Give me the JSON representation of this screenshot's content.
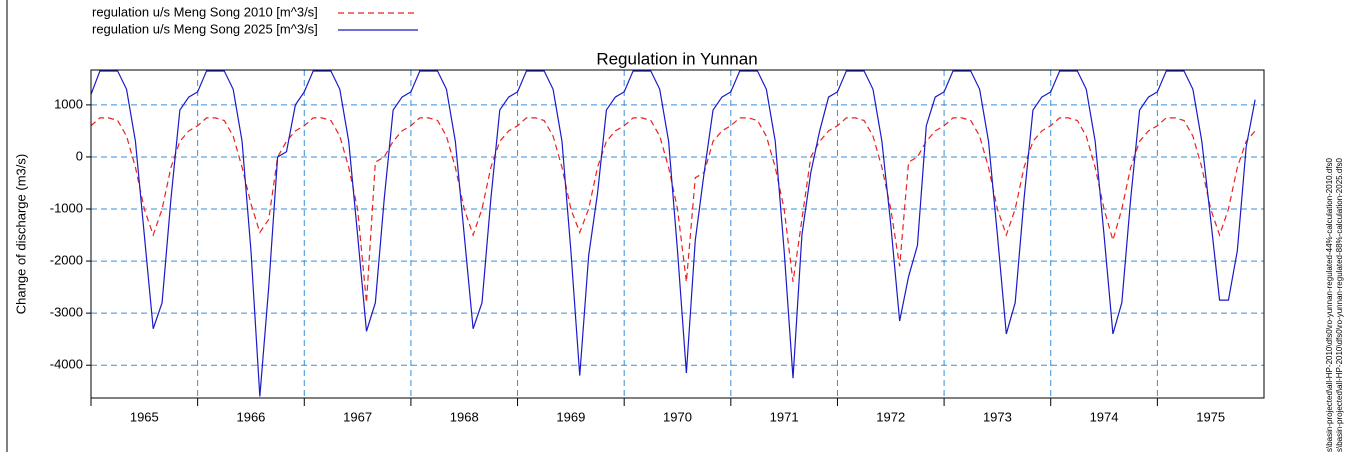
{
  "chart_data": {
    "type": "line",
    "title": "Regulation in Yunnan",
    "y_label": "Change of discharge (m3/s)",
    "side_notes": [
      "s\\basin-projected\\all-HP-2010\\dfs0\\ro-yunnan-regulated-44%-calculation-2010.dfs0",
      "s\\basin-projected\\all-HP-2010\\dfs0\\ro-yunnan-regulated-88%-calculation-2025.dfs0"
    ],
    "x": [
      1965,
      1965.0833,
      1965.1667,
      1965.25,
      1965.3333,
      1965.4167,
      1965.5,
      1965.5833,
      1965.6667,
      1965.75,
      1965.8333,
      1965.9167,
      1966,
      1966.0833,
      1966.1667,
      1966.25,
      1966.3333,
      1966.4167,
      1966.5,
      1966.5833,
      1966.6667,
      1966.75,
      1966.8333,
      1966.9167,
      1967,
      1967.0833,
      1967.1667,
      1967.25,
      1967.3333,
      1967.4167,
      1967.5,
      1967.5833,
      1967.6667,
      1967.75,
      1967.8333,
      1967.9167,
      1968,
      1968.0833,
      1968.1667,
      1968.25,
      1968.3333,
      1968.4167,
      1968.5,
      1968.5833,
      1968.6667,
      1968.75,
      1968.8333,
      1968.9167,
      1969,
      1969.0833,
      1969.1667,
      1969.25,
      1969.3333,
      1969.4167,
      1969.5,
      1969.5833,
      1969.6667,
      1969.75,
      1969.8333,
      1969.9167,
      1970,
      1970.0833,
      1970.1667,
      1970.25,
      1970.3333,
      1970.4167,
      1970.5,
      1970.5833,
      1970.6667,
      1970.75,
      1970.8333,
      1970.9167,
      1971,
      1971.0833,
      1971.1667,
      1971.25,
      1971.3333,
      1971.4167,
      1971.5,
      1971.5833,
      1971.6667,
      1971.75,
      1971.8333,
      1971.9167,
      1972,
      1972.0833,
      1972.1667,
      1972.25,
      1972.3333,
      1972.4167,
      1972.5,
      1972.5833,
      1972.6667,
      1972.75,
      1972.8333,
      1972.9167,
      1973,
      1973.0833,
      1973.1667,
      1973.25,
      1973.3333,
      1973.4167,
      1973.5,
      1973.5833,
      1973.6667,
      1973.75,
      1973.8333,
      1973.9167,
      1974,
      1974.0833,
      1974.1667,
      1974.25,
      1974.3333,
      1974.4167,
      1974.5,
      1974.5833,
      1974.6667,
      1974.75,
      1974.8333,
      1974.9167,
      1975,
      1975.0833,
      1975.1667,
      1975.25,
      1975.3333,
      1975.4167,
      1975.5,
      1975.5833,
      1975.6667,
      1975.75,
      1975.8333,
      1975.9167
    ],
    "series": [
      {
        "name": "regulation u/s Meng Song 2010 [m^3/s]",
        "color": "#e8231f",
        "dash": true,
        "values": [
          600,
          750,
          750,
          700,
          400,
          -200,
          -1000,
          -1500,
          -1000,
          -200,
          300,
          500,
          600,
          750,
          750,
          700,
          400,
          -200,
          -900,
          -1450,
          -1200,
          0,
          300,
          500,
          600,
          750,
          750,
          700,
          400,
          -200,
          -1000,
          -2800,
          -100,
          0,
          300,
          500,
          600,
          750,
          750,
          700,
          400,
          -200,
          -1000,
          -1500,
          -1000,
          -200,
          300,
          500,
          600,
          750,
          750,
          700,
          400,
          -200,
          -1000,
          -1450,
          -1000,
          -200,
          300,
          500,
          600,
          750,
          750,
          700,
          400,
          -200,
          -1000,
          -2400,
          -400,
          -300,
          300,
          500,
          600,
          750,
          750,
          700,
          400,
          -200,
          -1000,
          -2400,
          -1200,
          0,
          300,
          500,
          600,
          750,
          750,
          700,
          400,
          -200,
          -1000,
          -2100,
          -100,
          0,
          300,
          500,
          600,
          750,
          750,
          700,
          400,
          -200,
          -1000,
          -1500,
          -1000,
          -200,
          300,
          500,
          600,
          750,
          750,
          700,
          400,
          -200,
          -1000,
          -1600,
          -1000,
          -200,
          300,
          500,
          600,
          750,
          750,
          700,
          400,
          -200,
          -1000,
          -1500,
          -1000,
          -200,
          300,
          500
        ]
      },
      {
        "name": "regulation u/s Meng Song 2025 [m^3/s]",
        "color": "#1a1ac8",
        "dash": false,
        "values": [
          1200,
          1650,
          1650,
          1650,
          1300,
          300,
          -1500,
          -3300,
          -2800,
          -800,
          900,
          1150,
          1250,
          1650,
          1650,
          1650,
          1300,
          300,
          -1800,
          -4600,
          -2500,
          0,
          100,
          1000,
          1250,
          1650,
          1650,
          1650,
          1300,
          300,
          -1500,
          -3350,
          -2800,
          -800,
          900,
          1150,
          1250,
          1650,
          1650,
          1650,
          1300,
          300,
          -1500,
          -3300,
          -2800,
          -800,
          900,
          1150,
          1250,
          1650,
          1650,
          1650,
          1300,
          300,
          -1800,
          -4200,
          -1900,
          -700,
          900,
          1150,
          1250,
          1650,
          1650,
          1650,
          1300,
          300,
          -1800,
          -4150,
          -1600,
          -300,
          900,
          1150,
          1250,
          1650,
          1650,
          1650,
          1300,
          300,
          -1800,
          -4250,
          -1500,
          -300,
          500,
          1150,
          1250,
          1650,
          1650,
          1650,
          1300,
          300,
          -1300,
          -3150,
          -2300,
          -1700,
          600,
          1150,
          1250,
          1650,
          1650,
          1650,
          1300,
          300,
          -1500,
          -3400,
          -2800,
          -800,
          900,
          1150,
          1250,
          1650,
          1650,
          1650,
          1300,
          300,
          -1500,
          -3400,
          -2800,
          -800,
          900,
          1150,
          1250,
          1650,
          1650,
          1650,
          1300,
          300,
          -1200,
          -2750,
          -2750,
          -1800,
          200,
          1100
        ]
      }
    ],
    "xlim": [
      1965,
      1976
    ],
    "xticks": [
      1965,
      1966,
      1967,
      1968,
      1969,
      1970,
      1971,
      1972,
      1973,
      1974,
      1975
    ],
    "ylim": [
      -4630,
      1670
    ],
    "yticks": [
      -4000,
      -3000,
      -2000,
      -1000,
      0,
      1000
    ],
    "grid": true
  }
}
